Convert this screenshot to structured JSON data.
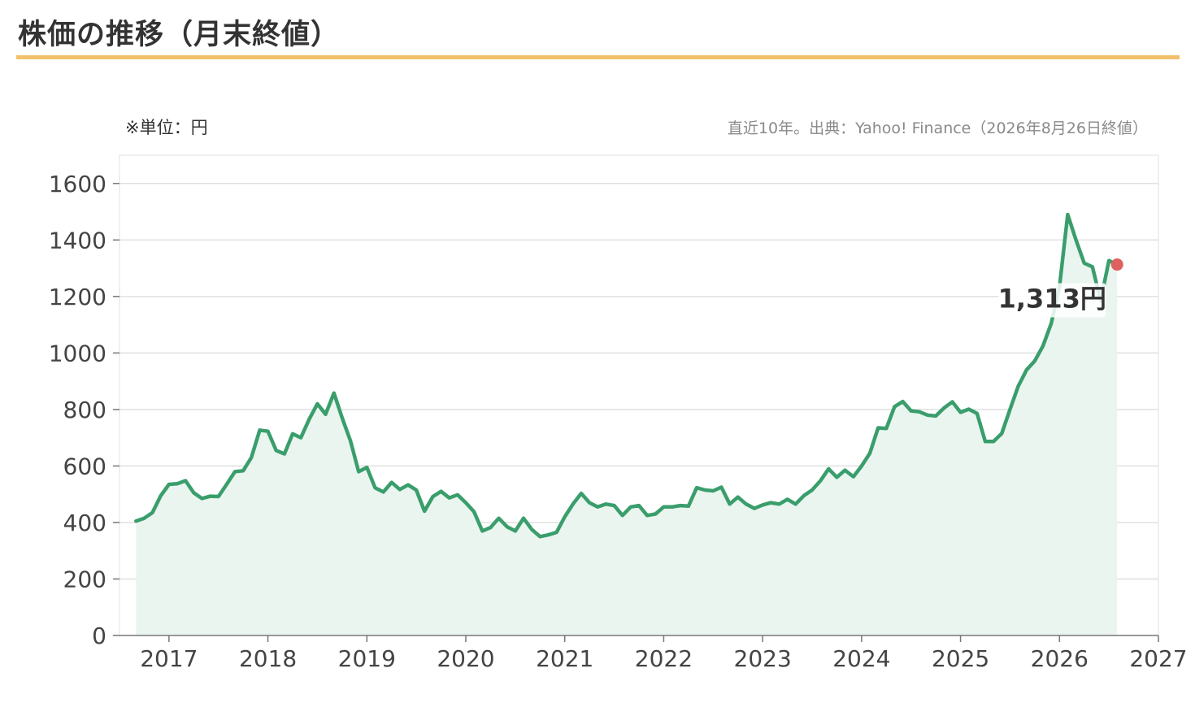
{
  "title": "株価の推移（月末終値）",
  "unit_note": "※単位：円",
  "source_note": "直近10年。出典：Yahoo! Finance（2026年8月26日終値）",
  "colors": {
    "line": "#3a9e6c",
    "area": "#eaf5ef",
    "last_point": "#e06060",
    "accent_rule": "#f3c16b"
  },
  "chart_data": {
    "type": "area",
    "title": "株価の推移（月末終値）",
    "xlabel": "",
    "ylabel": "",
    "unit": "円",
    "xlim": [
      2016.5,
      2027
    ],
    "ylim": [
      0,
      1700
    ],
    "y_ticks": [
      0,
      200,
      400,
      600,
      800,
      1000,
      1200,
      1400,
      1600
    ],
    "x_ticks": [
      2017,
      2018,
      2019,
      2020,
      2021,
      2022,
      2023,
      2024,
      2025,
      2026,
      2027
    ],
    "grid": true,
    "last_label": "1,313円",
    "series": [
      {
        "x": [
          2016.667,
          2016.75,
          2016.833,
          2016.917,
          2017.0,
          2017.083,
          2017.167,
          2017.25,
          2017.333,
          2017.417,
          2017.5,
          2017.583,
          2017.667,
          2017.75,
          2017.833,
          2017.917,
          2018.0,
          2018.083,
          2018.167,
          2018.25,
          2018.333,
          2018.417,
          2018.5,
          2018.583,
          2018.667,
          2018.75,
          2018.833,
          2018.917,
          2019.0,
          2019.083,
          2019.167,
          2019.25,
          2019.333,
          2019.417,
          2019.5,
          2019.583,
          2019.667,
          2019.75,
          2019.833,
          2019.917,
          2020.0,
          2020.083,
          2020.167,
          2020.25,
          2020.333,
          2020.417,
          2020.5,
          2020.583,
          2020.667,
          2020.75,
          2020.833,
          2020.917,
          2021.0,
          2021.083,
          2021.167,
          2021.25,
          2021.333,
          2021.417,
          2021.5,
          2021.583,
          2021.667,
          2021.75,
          2021.833,
          2021.917,
          2022.0,
          2022.083,
          2022.167,
          2022.25,
          2022.333,
          2022.417,
          2022.5,
          2022.583,
          2022.667,
          2022.75,
          2022.833,
          2022.917,
          2023.0,
          2023.083,
          2023.167,
          2023.25,
          2023.333,
          2023.417,
          2023.5,
          2023.583,
          2023.667,
          2023.75,
          2023.833,
          2023.917,
          2024.0,
          2024.083,
          2024.167,
          2024.25,
          2024.333,
          2024.417,
          2024.5,
          2024.583,
          2024.667,
          2024.75,
          2024.833,
          2024.917,
          2025.0,
          2025.083,
          2025.167,
          2025.25,
          2025.333,
          2025.417,
          2025.5,
          2025.583,
          2025.667,
          2025.75,
          2025.833,
          2025.917,
          2026.0,
          2026.083,
          2026.167,
          2026.25,
          2026.333,
          2026.417,
          2026.5,
          2026.583
        ],
        "values": [
          405,
          415,
          435,
          495,
          535,
          537,
          548,
          505,
          485,
          493,
          492,
          535,
          580,
          583,
          630,
          727,
          723,
          655,
          643,
          714,
          700,
          765,
          820,
          783,
          858,
          770,
          690,
          580,
          595,
          523,
          508,
          542,
          517,
          533,
          515,
          440,
          492,
          510,
          487,
          498,
          470,
          438,
          370,
          382,
          415,
          385,
          370,
          415,
          375,
          350,
          356,
          365,
          420,
          465,
          503,
          470,
          455,
          465,
          460,
          425,
          455,
          460,
          425,
          430,
          455,
          455,
          460,
          458,
          523,
          515,
          512,
          525,
          465,
          490,
          465,
          450,
          462,
          470,
          465,
          482,
          465,
          495,
          515,
          547,
          590,
          560,
          585,
          562,
          600,
          645,
          735,
          733,
          810,
          828,
          795,
          792,
          780,
          777,
          805,
          827,
          790,
          801,
          786,
          687,
          687,
          715,
          800,
          882,
          940,
          972,
          1025,
          1105,
          1235,
          1490,
          1400,
          1318,
          1305,
          1185,
          1327,
          1313
        ]
      }
    ]
  }
}
